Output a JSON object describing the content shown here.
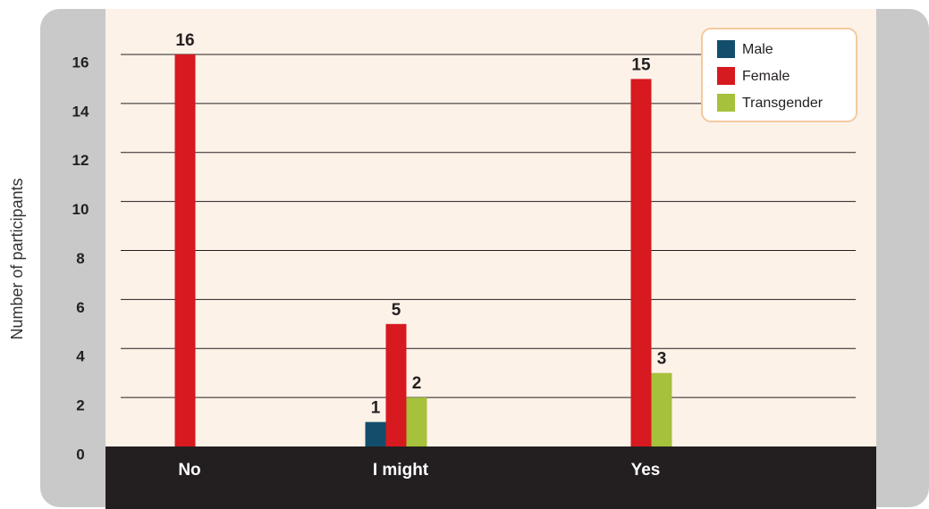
{
  "chart_data": {
    "type": "bar",
    "ylabel": "Number of participants",
    "categories": [
      "No",
      "I might",
      "Yes"
    ],
    "series": [
      {
        "name": "Male",
        "color": "#124e6c",
        "values": [
          null,
          1,
          null
        ]
      },
      {
        "name": "Female",
        "color": "#d71920",
        "values": [
          16,
          5,
          15
        ]
      },
      {
        "name": "Transgender",
        "color": "#a6c13b",
        "values": [
          null,
          2,
          3
        ]
      }
    ],
    "ylim": [
      0,
      16
    ],
    "yticks": [
      0,
      2,
      4,
      6,
      8,
      10,
      12,
      14,
      16
    ],
    "grid": true,
    "legend": "upper right"
  }
}
